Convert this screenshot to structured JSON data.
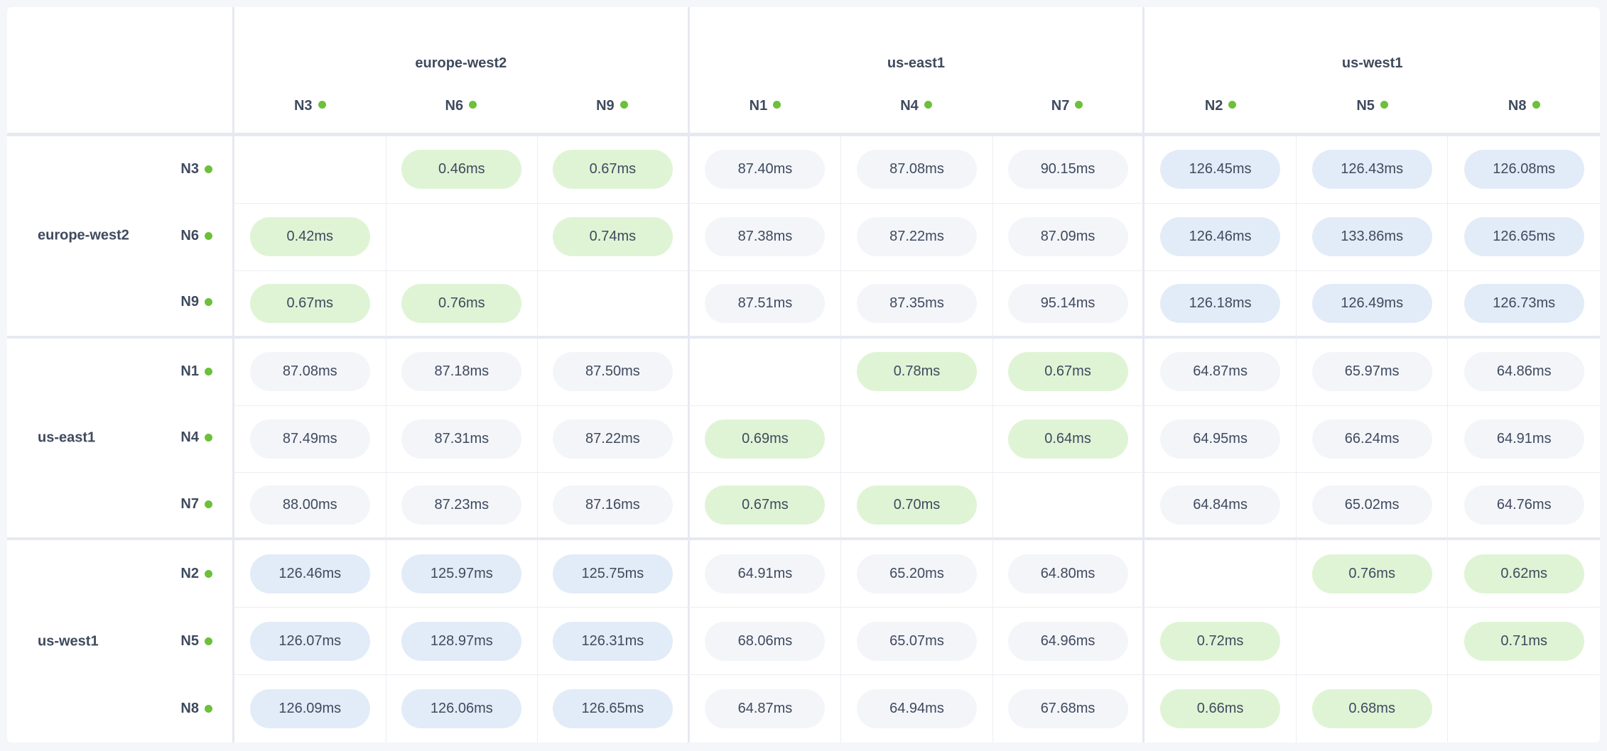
{
  "regions": [
    {
      "name": "europe-west2",
      "nodes": [
        "N3",
        "N6",
        "N9"
      ]
    },
    {
      "name": "us-east1",
      "nodes": [
        "N1",
        "N4",
        "N7"
      ]
    },
    {
      "name": "us-west1",
      "nodes": [
        "N2",
        "N5",
        "N8"
      ]
    }
  ],
  "node_status": "live",
  "colors": {
    "same_region": "#dff4d5",
    "cross_region_near": "#f3f5f9",
    "cross_region_far": "#e2ecf8",
    "status_dot": "#6cc03a",
    "text": "#3f4a5e"
  },
  "latency_matrix": [
    [
      null,
      "0.46ms",
      "0.67ms",
      "87.40ms",
      "87.08ms",
      "90.15ms",
      "126.45ms",
      "126.43ms",
      "126.08ms"
    ],
    [
      "0.42ms",
      null,
      "0.74ms",
      "87.38ms",
      "87.22ms",
      "87.09ms",
      "126.46ms",
      "133.86ms",
      "126.65ms"
    ],
    [
      "0.67ms",
      "0.76ms",
      null,
      "87.51ms",
      "87.35ms",
      "95.14ms",
      "126.18ms",
      "126.49ms",
      "126.73ms"
    ],
    [
      "87.08ms",
      "87.18ms",
      "87.50ms",
      null,
      "0.78ms",
      "0.67ms",
      "64.87ms",
      "65.97ms",
      "64.86ms"
    ],
    [
      "87.49ms",
      "87.31ms",
      "87.22ms",
      "0.69ms",
      null,
      "0.64ms",
      "64.95ms",
      "66.24ms",
      "64.91ms"
    ],
    [
      "88.00ms",
      "87.23ms",
      "87.16ms",
      "0.67ms",
      "0.70ms",
      null,
      "64.84ms",
      "65.02ms",
      "64.76ms"
    ],
    [
      "126.46ms",
      "125.97ms",
      "125.75ms",
      "64.91ms",
      "65.20ms",
      "64.80ms",
      null,
      "0.76ms",
      "0.62ms"
    ],
    [
      "126.07ms",
      "128.97ms",
      "126.31ms",
      "68.06ms",
      "65.07ms",
      "64.96ms",
      "0.72ms",
      null,
      "0.71ms"
    ],
    [
      "126.09ms",
      "126.06ms",
      "126.65ms",
      "64.87ms",
      "64.94ms",
      "67.68ms",
      "0.66ms",
      "0.68ms",
      null
    ]
  ]
}
